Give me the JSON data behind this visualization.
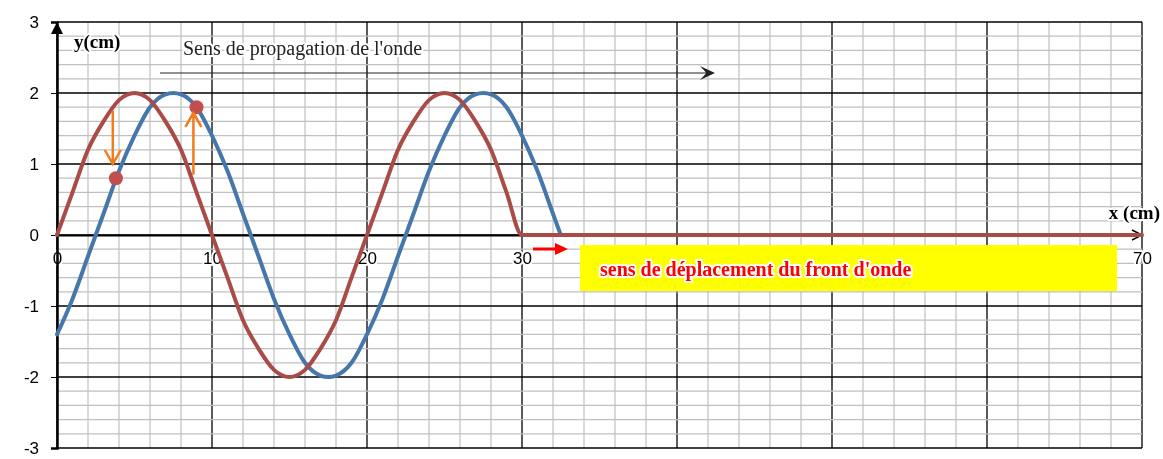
{
  "chart_data": {
    "type": "line",
    "xlabel": "x (cm)",
    "ylabel": "y(cm)",
    "xlim": [
      0,
      70
    ],
    "ylim": [
      -3,
      3
    ],
    "xticks": [
      0,
      10,
      20,
      30,
      {
        "value": 40,
        "label": null
      },
      {
        "value": 50,
        "label": null
      },
      {
        "value": 60,
        "label": null
      },
      70
    ],
    "yticks": [
      -3,
      -2,
      -1,
      0,
      1,
      2,
      3
    ],
    "grid": true,
    "annotations": [
      "Sens de propagation de l'onde",
      "sens de déplacement du front d'onde"
    ],
    "series": [
      {
        "color": "#4677aa",
        "x": [
          0,
          1,
          2,
          3,
          4,
          5,
          6,
          7,
          7.5,
          8,
          9,
          10,
          11,
          12,
          13,
          14,
          15,
          16,
          17,
          17.5,
          18,
          19,
          20,
          21,
          22,
          23,
          24,
          25,
          26,
          27,
          27.5,
          28,
          29,
          30,
          31,
          32,
          32.5
        ],
        "values": [
          -1.4,
          -0.9,
          -0.3,
          0.3,
          0.9,
          1.4,
          1.8,
          1.98,
          2,
          1.98,
          1.8,
          1.4,
          0.9,
          0.3,
          -0.3,
          -0.9,
          -1.4,
          -1.8,
          -1.98,
          -2,
          -1.98,
          -1.8,
          -1.4,
          -0.9,
          -0.3,
          0.3,
          0.9,
          1.4,
          1.8,
          1.98,
          2,
          1.98,
          1.8,
          1.4,
          0.9,
          0.3,
          0
        ]
      },
      {
        "color": "#a94c47",
        "x": [
          0,
          1,
          2,
          3,
          4,
          5,
          6,
          7,
          8,
          9,
          10,
          11,
          12,
          13,
          14,
          15,
          16,
          17,
          18,
          19,
          20,
          21,
          22,
          23,
          24,
          25,
          26,
          27,
          28,
          29,
          30,
          70
        ],
        "values": [
          0,
          0.6,
          1.2,
          1.6,
          1.9,
          2,
          1.9,
          1.6,
          1.2,
          0.6,
          0,
          -0.6,
          -1.2,
          -1.6,
          -1.9,
          -2,
          -1.9,
          -1.6,
          -1.2,
          -0.6,
          0,
          0.6,
          1.2,
          1.6,
          1.9,
          2,
          1.9,
          1.6,
          1.2,
          0.6,
          0,
          0
        ]
      },
      {
        "type": "scatter",
        "color": "#c0504d",
        "x": [
          3.8,
          9
        ],
        "values": [
          0.8,
          1.8
        ]
      }
    ]
  }
}
